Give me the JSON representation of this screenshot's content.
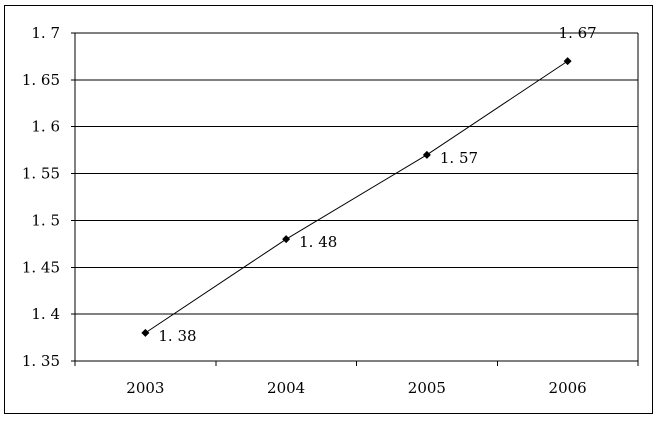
{
  "chart_data": {
    "type": "line",
    "title": "",
    "xlabel": "",
    "ylabel": "",
    "categories": [
      "2003",
      "2004",
      "2005",
      "2006"
    ],
    "series": [
      {
        "values": [
          1.38,
          1.48,
          1.57,
          1.67
        ],
        "data_labels": [
          "1. 38",
          "1. 48",
          "1. 57",
          "1. 67"
        ],
        "color": "#000000",
        "marker": "diamond"
      }
    ],
    "ylim": [
      1.35,
      1.7
    ],
    "y_ticks": [
      1.35,
      1.4,
      1.45,
      1.5,
      1.55,
      1.6,
      1.65,
      1.7
    ],
    "y_tick_labels": [
      "1. 35",
      "1. 4",
      "1. 45",
      "1. 5",
      "1. 55",
      "1. 6",
      "1. 65",
      "1. 7"
    ],
    "grid": true,
    "legend": "none"
  }
}
